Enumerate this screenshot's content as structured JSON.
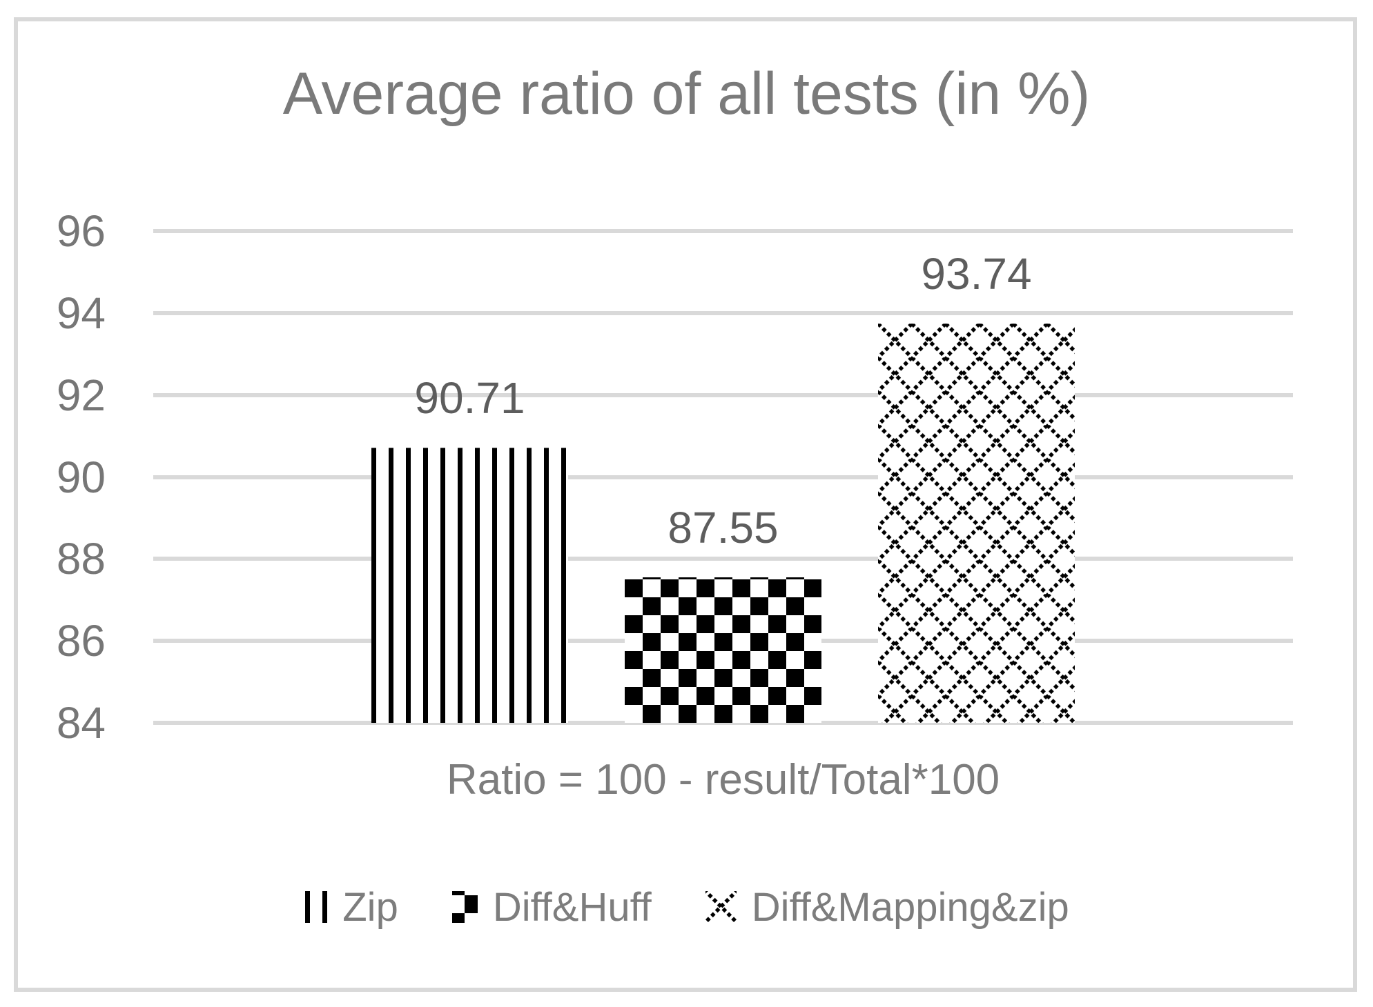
{
  "chart_data": {
    "type": "bar",
    "title": "Average ratio of all tests (in %)",
    "xlabel": "Ratio = 100 - result/Total*100",
    "ylabel": "",
    "categories": [
      "Zip",
      "Diff&Huff",
      "Diff&Mapping&zip"
    ],
    "values": [
      90.71,
      87.55,
      93.74
    ],
    "data_labels": [
      "90.71",
      "87.55",
      "93.74"
    ],
    "yticks": [
      96,
      94,
      92,
      90,
      88,
      86,
      84
    ],
    "ylim": [
      84,
      96
    ],
    "grid": true,
    "legend_position": "bottom",
    "legend": [
      {
        "label": "Zip",
        "pattern": "vertical-stripes"
      },
      {
        "label": "Diff&Huff",
        "pattern": "checkerboard"
      },
      {
        "label": "Diff&Mapping&zip",
        "pattern": "diagonal-crosshatch"
      }
    ],
    "colors": {
      "pattern_foreground": "#000000",
      "pattern_background": "#ffffff",
      "gridline": "#d9d9d9",
      "chart_border": "#d9d9d9",
      "axis_text": "#767676",
      "title_text": "#7a7a7a",
      "data_label_text": "#5d5d5d",
      "legend_text": "#7d7d7d"
    }
  }
}
